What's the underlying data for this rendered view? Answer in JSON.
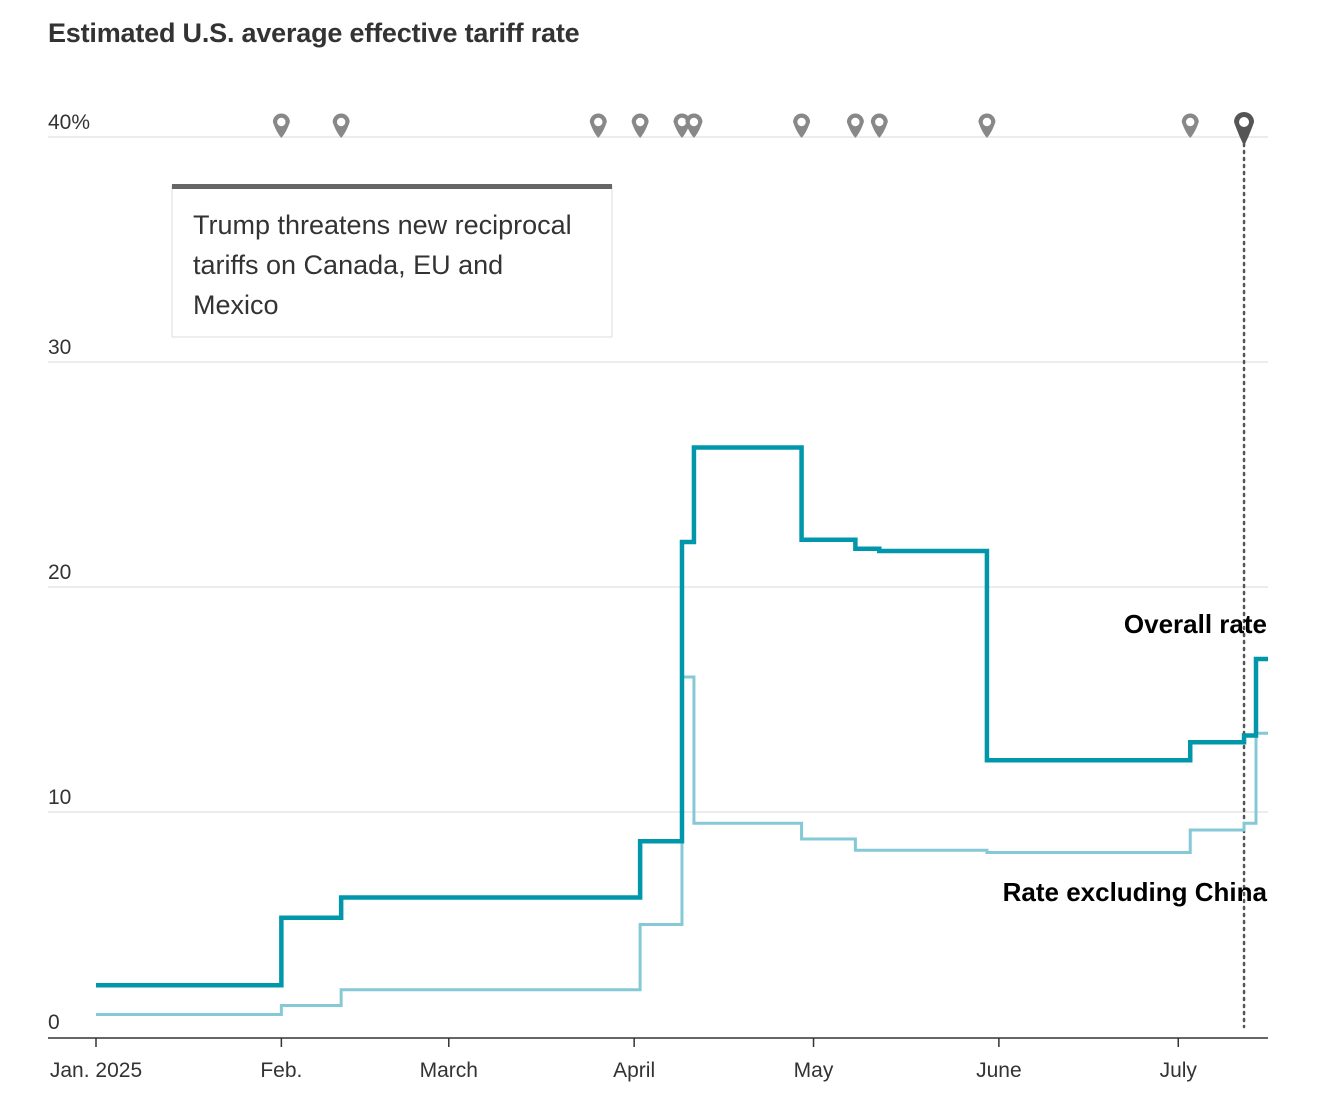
{
  "title": "Estimated U.S. average effective tariff rate",
  "annotation": {
    "lines": [
      "Trump threatens new reciprocal",
      "tariffs on Canada, EU and",
      "Mexico"
    ]
  },
  "colors": {
    "overall": "#0097ab",
    "excluding_china": "#86c9d6",
    "grid": "#d9d9d9",
    "axis": "#333333",
    "marker": "#888888",
    "marker_active": "#555555"
  },
  "chart_data": {
    "type": "line",
    "title": "Estimated U.S. average effective tariff rate",
    "xlabel": "",
    "ylabel": "",
    "ylim": [
      0,
      40
    ],
    "y_ticks": [
      {
        "value": 40,
        "label": "40%"
      },
      {
        "value": 30,
        "label": "30"
      },
      {
        "value": 20,
        "label": "20"
      },
      {
        "value": 10,
        "label": "10"
      },
      {
        "value": 0,
        "label": "0"
      }
    ],
    "xlim": [
      "2025-01-01",
      "2025-07-15"
    ],
    "x_ticks": [
      {
        "date": "2025-01-01",
        "label": "Jan. 2025"
      },
      {
        "date": "2025-02-01",
        "label": "Feb."
      },
      {
        "date": "2025-03-01",
        "label": "March"
      },
      {
        "date": "2025-04-01",
        "label": "April"
      },
      {
        "date": "2025-05-01",
        "label": "May"
      },
      {
        "date": "2025-06-01",
        "label": "June"
      },
      {
        "date": "2025-07-01",
        "label": "July"
      }
    ],
    "grid": true,
    "step": true,
    "event_dates": [
      "2025-02-01",
      "2025-02-11",
      "2025-03-26",
      "2025-04-02",
      "2025-04-09",
      "2025-04-11",
      "2025-04-29",
      "2025-05-08",
      "2025-05-12",
      "2025-05-30",
      "2025-07-03",
      "2025-07-12"
    ],
    "series": [
      {
        "name": "Overall rate",
        "x": [
          "2025-01-01",
          "2025-02-01",
          "2025-02-11",
          "2025-03-26",
          "2025-04-02",
          "2025-04-09",
          "2025-04-11",
          "2025-04-29",
          "2025-05-08",
          "2025-05-12",
          "2025-05-30",
          "2025-07-03",
          "2025-07-12",
          "2025-07-14"
        ],
        "values": [
          2.3,
          5.3,
          6.2,
          6.2,
          8.7,
          22.0,
          26.2,
          22.1,
          21.7,
          21.6,
          12.3,
          13.1,
          13.4,
          16.8
        ]
      },
      {
        "name": "Rate excluding China",
        "x": [
          "2025-01-01",
          "2025-02-01",
          "2025-02-11",
          "2025-03-26",
          "2025-04-02",
          "2025-04-09",
          "2025-04-11",
          "2025-04-29",
          "2025-05-08",
          "2025-05-30",
          "2025-07-03",
          "2025-07-12",
          "2025-07-14"
        ],
        "values": [
          1.0,
          1.4,
          2.1,
          2.1,
          5.0,
          16.0,
          9.5,
          8.8,
          8.3,
          8.2,
          9.2,
          9.5,
          13.5
        ]
      }
    ]
  }
}
